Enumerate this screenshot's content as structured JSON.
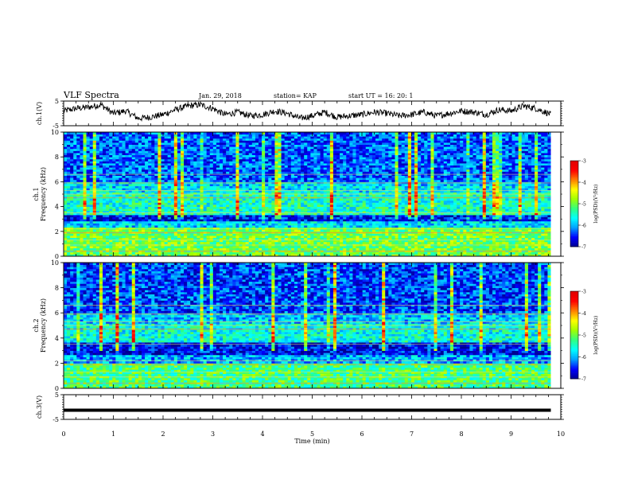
{
  "header": {
    "title": "VLF Spectra",
    "date": "Jan. 29, 2018",
    "station": "station= KAP",
    "start": "start UT =   16: 20: 1"
  },
  "colorbar": {
    "label": "log(PSD)(V²/Hz)",
    "ticks": [
      "-3",
      "-4",
      "-5",
      "-6",
      "-7"
    ],
    "colors": [
      "#000090",
      "#0000ff",
      "#00a0ff",
      "#00ffff",
      "#30ff80",
      "#a0ff00",
      "#ffff00",
      "#ff8000",
      "#ff0000",
      "#e00000",
      "#ffffff"
    ]
  },
  "chart_data": [
    {
      "type": "line",
      "ylabel": "ch.1(V)",
      "ylim": [
        -5,
        5
      ],
      "yticks": [
        "5",
        "-5"
      ],
      "xlim": [
        0,
        10
      ],
      "x": [
        0,
        0.25,
        0.5,
        0.75,
        1,
        1.25,
        1.5,
        1.75,
        2,
        2.25,
        2.5,
        2.75,
        3,
        3.25,
        3.5,
        3.75,
        4,
        4.25,
        4.5,
        4.75,
        5,
        5.25,
        5.5,
        5.75,
        6,
        6.25,
        6.5,
        6.75,
        7,
        7.25,
        7.5,
        7.75,
        8,
        8.25,
        8.5,
        8.75,
        9,
        9.25,
        9.5,
        9.75,
        9.8
      ],
      "y": [
        1,
        2,
        2.5,
        3.5,
        0,
        1,
        -2,
        -1.5,
        -0.5,
        1.5,
        3,
        3.5,
        2,
        -0.5,
        0.5,
        -1,
        -0.5,
        1,
        0,
        -2,
        -1,
        0.5,
        -1.5,
        -1,
        -0.5,
        0.5,
        0,
        -1,
        -0.5,
        0.5,
        -1,
        0,
        1,
        0.5,
        -0.5,
        1.5,
        1,
        3,
        2,
        0,
        -0.5
      ]
    },
    {
      "type": "heatmap",
      "ylabel": "ch.1\nFrequency (kHz)",
      "ylim": [
        0,
        10
      ],
      "yticks": [
        "0",
        "2",
        "4",
        "6",
        "8",
        "10"
      ],
      "xlim": [
        0,
        10
      ],
      "color_scale": [
        -7,
        -3
      ],
      "dominant_bands_khz": [
        {
          "from": 0,
          "to": 2.3,
          "level": -5.0
        },
        {
          "from": 2.3,
          "to": 2.8,
          "level": -5.8
        },
        {
          "from": 2.8,
          "to": 3.4,
          "level": -6.6
        },
        {
          "from": 3.4,
          "to": 5.2,
          "level": -5.5
        },
        {
          "from": 5.2,
          "to": 6.0,
          "level": -5.8
        },
        {
          "from": 6.0,
          "to": 10,
          "level": -6.3
        }
      ]
    },
    {
      "type": "heatmap",
      "ylabel": "ch.2\nFrequency (kHz)",
      "ylim": [
        0,
        10
      ],
      "yticks": [
        "0",
        "2",
        "4",
        "6",
        "8",
        "10"
      ],
      "xlim": [
        0,
        10
      ],
      "color_scale": [
        -7,
        -3
      ],
      "dominant_bands_khz": [
        {
          "from": 0,
          "to": 2.0,
          "level": -5.2
        },
        {
          "from": 2.0,
          "to": 2.6,
          "level": -6.0
        },
        {
          "from": 2.6,
          "to": 3.6,
          "level": -6.6
        },
        {
          "from": 3.6,
          "to": 5.2,
          "level": -5.6
        },
        {
          "from": 5.2,
          "to": 6.0,
          "level": -5.9
        },
        {
          "from": 6.0,
          "to": 10,
          "level": -6.4
        }
      ]
    },
    {
      "type": "line",
      "ylabel": "ch.3(V)",
      "ylim": [
        -5,
        5
      ],
      "yticks": [
        "5",
        "-5"
      ],
      "xlim": [
        0,
        10
      ],
      "x": [
        0,
        9.8
      ],
      "y": [
        -1.3,
        -1.3
      ]
    }
  ],
  "xaxis": {
    "label": "Time (min)",
    "ticks": [
      "0",
      "1",
      "2",
      "3",
      "4",
      "5",
      "6",
      "7",
      "8",
      "9",
      "10"
    ]
  }
}
